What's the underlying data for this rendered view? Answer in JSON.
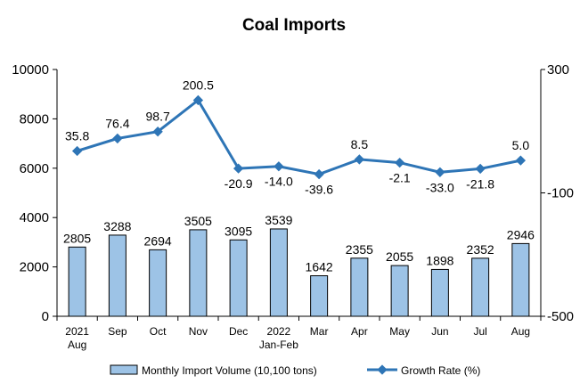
{
  "chart_data": {
    "type": "bar",
    "title": "Coal Imports",
    "categories": [
      [
        "2021",
        "Aug"
      ],
      [
        "Sep"
      ],
      [
        "Oct"
      ],
      [
        "Nov"
      ],
      [
        "Dec"
      ],
      [
        "2022",
        "Jan-Feb"
      ],
      [
        "Mar"
      ],
      [
        "Apr"
      ],
      [
        "May"
      ],
      [
        "Jun"
      ],
      [
        "Jul"
      ],
      [
        "Aug"
      ]
    ],
    "series": [
      {
        "name": "Monthly Import Volume (10,100 tons)",
        "type": "bar",
        "axis": "left",
        "values": [
          2805,
          3288,
          2694,
          3505,
          3095,
          3539,
          1642,
          2355,
          2055,
          1898,
          2352,
          2946
        ],
        "color": "#9DC3E6"
      },
      {
        "name": "Growth Rate (%)",
        "type": "line",
        "axis": "right",
        "values": [
          35.8,
          76.4,
          98.7,
          200.5,
          -20.9,
          -14.0,
          -39.6,
          8.5,
          -2.1,
          -33.0,
          -21.8,
          5.0
        ],
        "labels": [
          "35.8",
          "76.4",
          "98.7",
          "200.5",
          "-20.9",
          "-14.0",
          "-39.6",
          "8.5",
          "-2.1",
          "-33.0",
          "-21.8",
          "5.0"
        ],
        "color": "#2E75B6"
      }
    ],
    "y_left": {
      "min": 0,
      "max": 10000,
      "ticks": [
        "0",
        "2000",
        "4000",
        "6000",
        "8000",
        "10000"
      ]
    },
    "y_right": {
      "min": -500,
      "max": 300,
      "ticks": [
        "-500",
        "-100",
        "300"
      ]
    },
    "legend_position": "bottom",
    "grid": false
  }
}
